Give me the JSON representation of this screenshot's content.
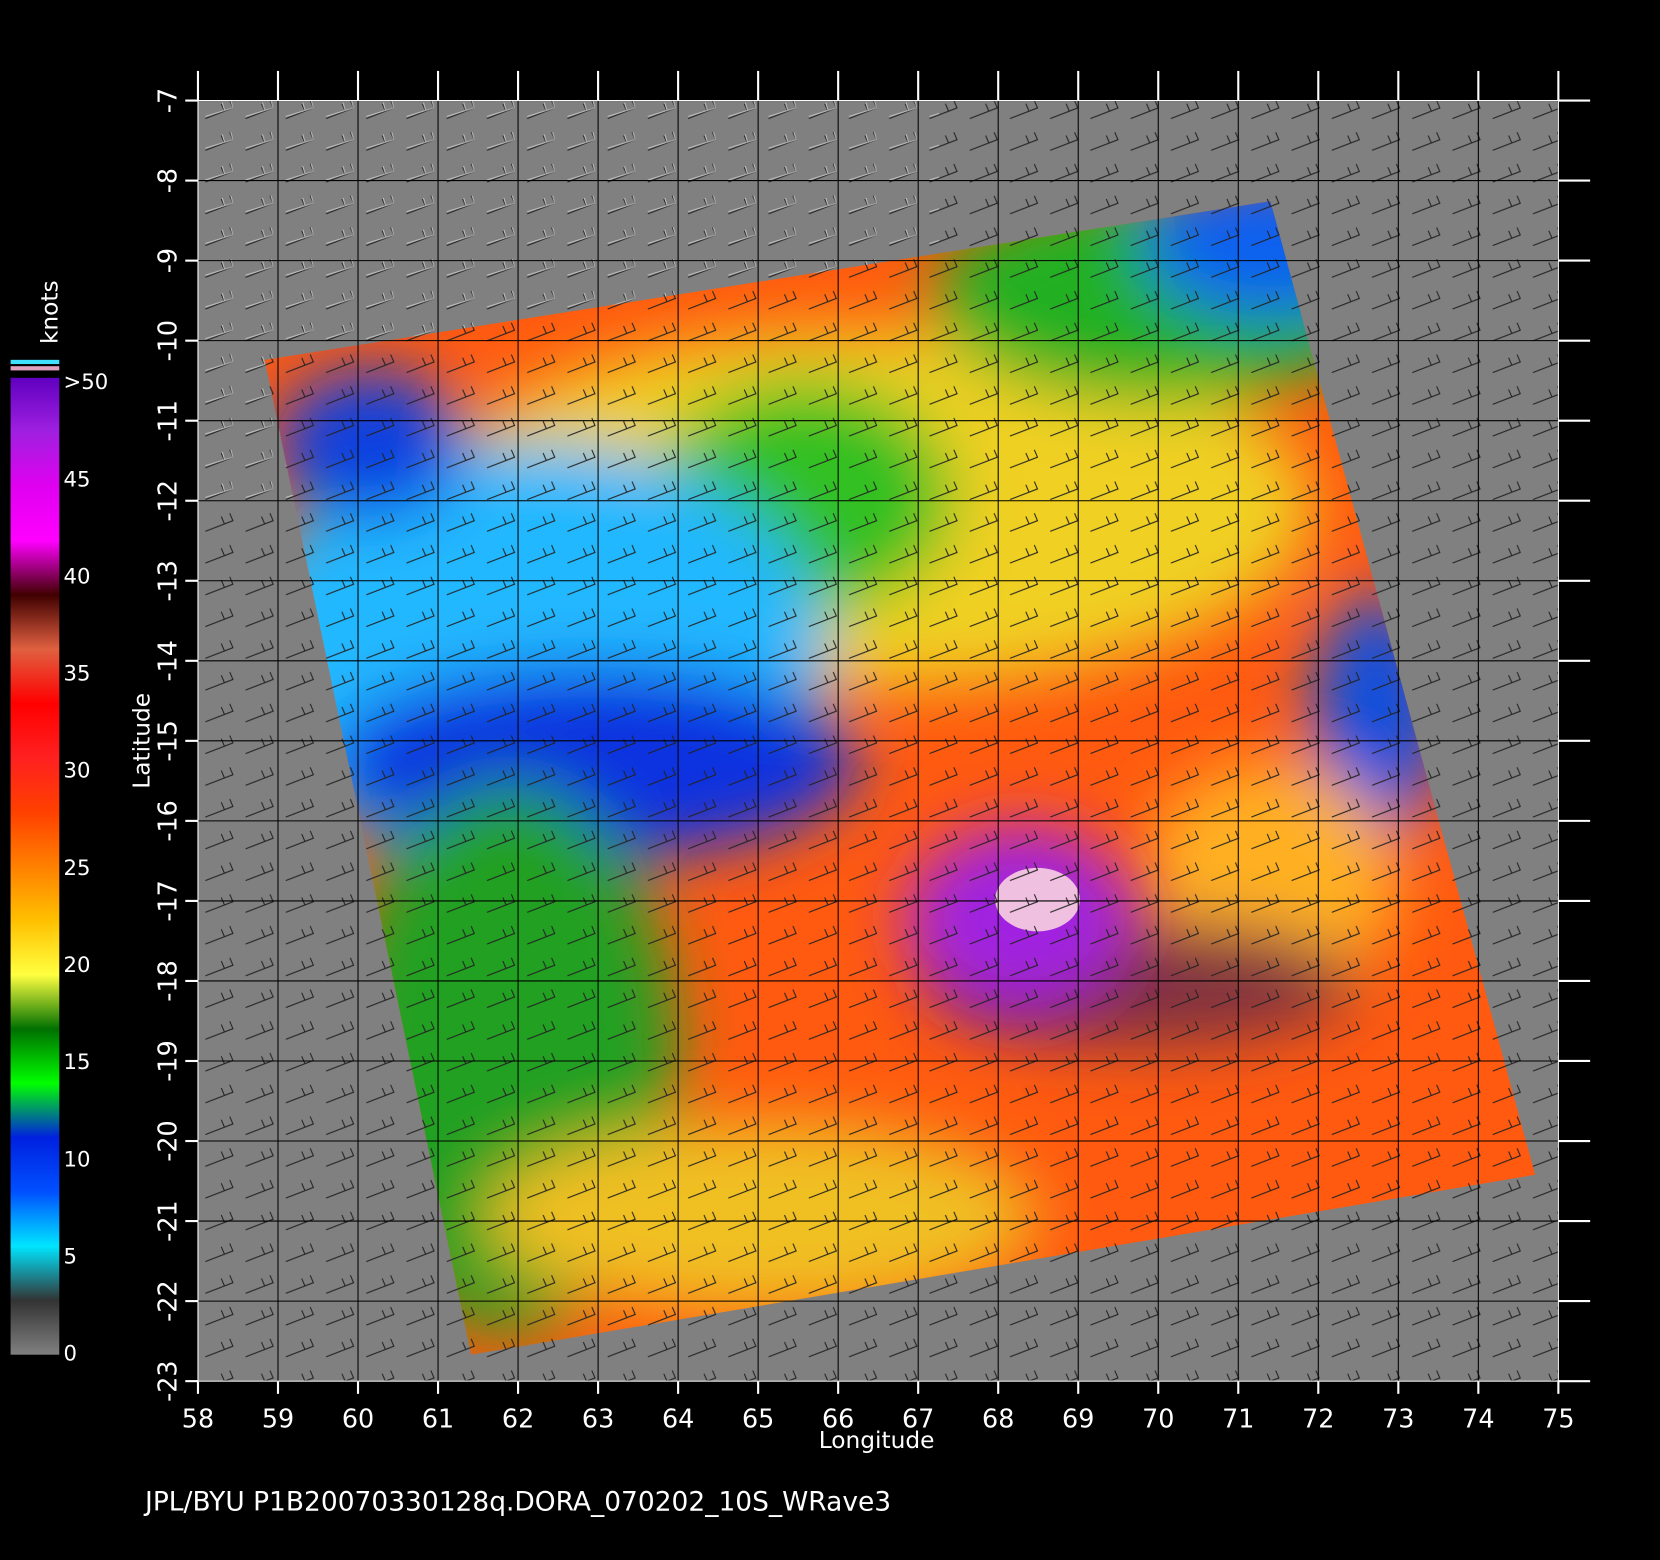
{
  "chart_data": {
    "type": "map",
    "xlabel": "Longitude",
    "ylabel": "Latitude",
    "xlim": [
      58,
      75
    ],
    "ylim": [
      -23,
      -7
    ],
    "xticks": [
      58,
      59,
      60,
      61,
      62,
      63,
      64,
      65,
      66,
      67,
      68,
      69,
      70,
      71,
      72,
      73,
      74,
      75
    ],
    "yticks": [
      -7,
      -8,
      -9,
      -10,
      -11,
      -12,
      -13,
      -14,
      -15,
      -16,
      -17,
      -18,
      -19,
      -20,
      -21,
      -22,
      -23
    ],
    "grid": true,
    "colorbar": {
      "label": "knots",
      "lim": [
        0,
        50
      ],
      "ticks": [
        0,
        5,
        10,
        15,
        20,
        25,
        30,
        35,
        40,
        45,
        {
          "value": 50,
          "label": ">50"
        }
      ],
      "colors": [
        "#808080",
        "#333333",
        "#00e5ff",
        "#0050ff",
        "#0020e0",
        "#00ff00",
        "#007000",
        "#ffff40",
        "#ffc000",
        "#ff8000",
        "#ff4000",
        "#ff2020",
        "#ff0000",
        "#e06040",
        "#400000",
        "#ff00ff",
        "#e000f0",
        "#a020e0",
        "#6000c0"
      ]
    },
    "caption": "JPL/BYU  P1B20070330128q.DORA_070202_10S_WRave3"
  }
}
